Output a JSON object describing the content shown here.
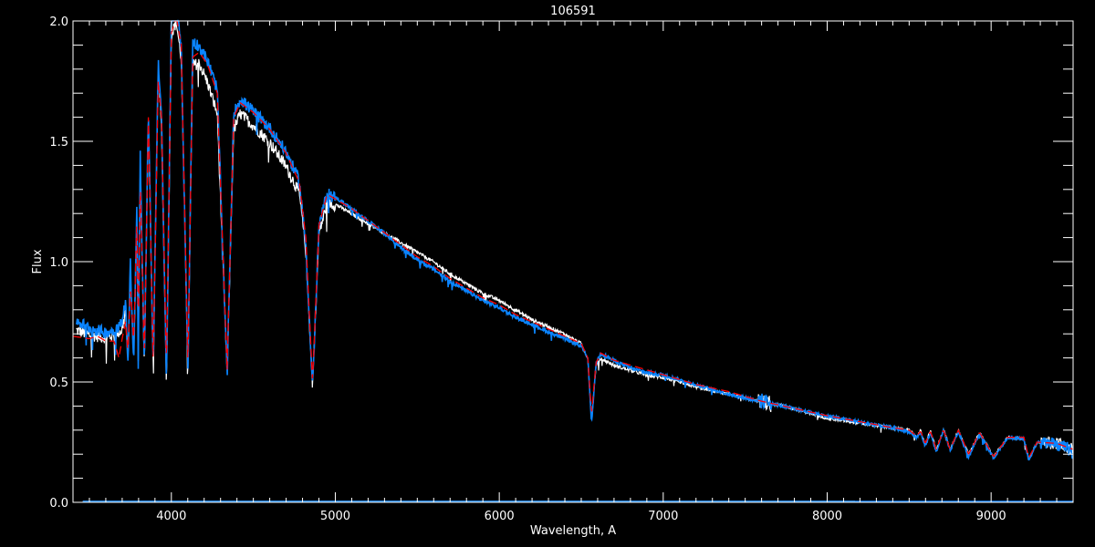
{
  "chart_data": {
    "type": "line",
    "title": "106591",
    "xlabel": "Wavelength, A",
    "ylabel": "Flux",
    "xlim": [
      3400,
      9500
    ],
    "ylim": [
      0.0,
      2.0
    ],
    "xticks": [
      "4000",
      "5000",
      "6000",
      "7000",
      "8000",
      "9000"
    ],
    "yticks": [
      "0.0",
      "0.5",
      "1.0",
      "1.5",
      "2.0"
    ],
    "grid": false,
    "background": "#000000",
    "series": [
      {
        "color": "#ffffff",
        "points": [
          [
            3420,
            0.72
          ],
          [
            3500,
            0.7
          ],
          [
            3600,
            0.69
          ],
          [
            3650,
            0.7
          ],
          [
            3700,
            0.72
          ],
          [
            3720,
            0.8
          ],
          [
            3735,
            0.6
          ],
          [
            3750,
            0.95
          ],
          [
            3770,
            0.6
          ],
          [
            3790,
            1.2
          ],
          [
            3798,
            0.6
          ],
          [
            3810,
            1.38
          ],
          [
            3835,
            0.58
          ],
          [
            3860,
            1.6
          ],
          [
            3889,
            0.57
          ],
          [
            3920,
            1.8
          ],
          [
            3940,
            1.55
          ],
          [
            3970,
            0.5
          ],
          [
            4000,
            1.95
          ],
          [
            4030,
            2.0
          ],
          [
            4060,
            1.85
          ],
          [
            4101,
            0.56
          ],
          [
            4130,
            1.82
          ],
          [
            4170,
            1.83
          ],
          [
            4220,
            1.75
          ],
          [
            4280,
            1.62
          ],
          [
            4340,
            0.54
          ],
          [
            4380,
            1.55
          ],
          [
            4420,
            1.62
          ],
          [
            4500,
            1.57
          ],
          [
            4600,
            1.5
          ],
          [
            4700,
            1.4
          ],
          [
            4780,
            1.29
          ],
          [
            4820,
            1.05
          ],
          [
            4861,
            0.49
          ],
          [
            4900,
            1.12
          ],
          [
            4950,
            1.25
          ],
          [
            5000,
            1.24
          ],
          [
            5100,
            1.2
          ],
          [
            5200,
            1.16
          ],
          [
            5300,
            1.12
          ],
          [
            5400,
            1.08
          ],
          [
            5500,
            1.04
          ],
          [
            5600,
            1.0
          ],
          [
            5700,
            0.95
          ],
          [
            5800,
            0.91
          ],
          [
            5900,
            0.87
          ],
          [
            6000,
            0.84
          ],
          [
            6100,
            0.8
          ],
          [
            6200,
            0.76
          ],
          [
            6300,
            0.73
          ],
          [
            6400,
            0.7
          ],
          [
            6500,
            0.66
          ],
          [
            6540,
            0.6
          ],
          [
            6563,
            0.34
          ],
          [
            6590,
            0.57
          ],
          [
            6620,
            0.6
          ],
          [
            6700,
            0.57
          ],
          [
            6800,
            0.55
          ],
          [
            6900,
            0.53
          ],
          [
            7000,
            0.52
          ],
          [
            7200,
            0.48
          ],
          [
            7400,
            0.45
          ],
          [
            7600,
            0.42
          ],
          [
            7800,
            0.39
          ],
          [
            8000,
            0.35
          ],
          [
            8200,
            0.33
          ],
          [
            8400,
            0.31
          ],
          [
            8500,
            0.3
          ],
          [
            8545,
            0.27
          ],
          [
            8570,
            0.3
          ],
          [
            8598,
            0.24
          ],
          [
            8630,
            0.3
          ],
          [
            8665,
            0.22
          ],
          [
            8710,
            0.305
          ],
          [
            8750,
            0.22
          ],
          [
            8800,
            0.3
          ],
          [
            8863,
            0.2
          ],
          [
            8930,
            0.29
          ],
          [
            9015,
            0.19
          ],
          [
            9100,
            0.27
          ],
          [
            9200,
            0.265
          ],
          [
            9229,
            0.18
          ],
          [
            9280,
            0.25
          ],
          [
            9400,
            0.245
          ],
          [
            9500,
            0.22
          ]
        ],
        "zero_line": [
          3460,
          8170
        ]
      },
      {
        "color": "#0a84ff",
        "points": [
          [
            3420,
            0.76
          ],
          [
            3500,
            0.73
          ],
          [
            3600,
            0.71
          ],
          [
            3650,
            0.72
          ],
          [
            3700,
            0.75
          ],
          [
            3720,
            0.85
          ],
          [
            3735,
            0.58
          ],
          [
            3750,
            1.0
          ],
          [
            3770,
            0.58
          ],
          [
            3790,
            1.25
          ],
          [
            3798,
            0.57
          ],
          [
            3810,
            1.45
          ],
          [
            3835,
            0.57
          ],
          [
            3860,
            1.65
          ],
          [
            3889,
            0.56
          ],
          [
            3920,
            1.85
          ],
          [
            3940,
            1.6
          ],
          [
            3970,
            0.49
          ],
          [
            4000,
            2.02
          ],
          [
            4030,
            2.05
          ],
          [
            4060,
            1.9
          ],
          [
            4101,
            0.55
          ],
          [
            4130,
            1.92
          ],
          [
            4170,
            1.9
          ],
          [
            4220,
            1.84
          ],
          [
            4280,
            1.72
          ],
          [
            4340,
            0.53
          ],
          [
            4380,
            1.62
          ],
          [
            4420,
            1.68
          ],
          [
            4500,
            1.63
          ],
          [
            4600,
            1.56
          ],
          [
            4700,
            1.46
          ],
          [
            4780,
            1.34
          ],
          [
            4820,
            1.08
          ],
          [
            4861,
            0.48
          ],
          [
            4900,
            1.15
          ],
          [
            4950,
            1.29
          ],
          [
            5000,
            1.27
          ],
          [
            5100,
            1.22
          ],
          [
            5200,
            1.17
          ],
          [
            5300,
            1.12
          ],
          [
            5400,
            1.06
          ],
          [
            5500,
            1.01
          ],
          [
            5600,
            0.97
          ],
          [
            5700,
            0.92
          ],
          [
            5800,
            0.88
          ],
          [
            5900,
            0.84
          ],
          [
            6000,
            0.81
          ],
          [
            6100,
            0.77
          ],
          [
            6200,
            0.74
          ],
          [
            6300,
            0.71
          ],
          [
            6400,
            0.68
          ],
          [
            6500,
            0.65
          ],
          [
            6540,
            0.6
          ],
          [
            6563,
            0.33
          ],
          [
            6590,
            0.58
          ],
          [
            6620,
            0.62
          ],
          [
            6700,
            0.59
          ],
          [
            6800,
            0.56
          ],
          [
            6900,
            0.54
          ],
          [
            7000,
            0.53
          ],
          [
            7200,
            0.49
          ],
          [
            7400,
            0.45
          ],
          [
            7600,
            0.42
          ],
          [
            7800,
            0.39
          ],
          [
            8000,
            0.36
          ],
          [
            8200,
            0.335
          ],
          [
            8400,
            0.31
          ],
          [
            8500,
            0.295
          ],
          [
            8545,
            0.27
          ],
          [
            8570,
            0.29
          ],
          [
            8598,
            0.235
          ],
          [
            8630,
            0.29
          ],
          [
            8665,
            0.21
          ],
          [
            8710,
            0.3
          ],
          [
            8750,
            0.215
          ],
          [
            8800,
            0.295
          ],
          [
            8863,
            0.19
          ],
          [
            8930,
            0.29
          ],
          [
            9015,
            0.185
          ],
          [
            9100,
            0.27
          ],
          [
            9200,
            0.265
          ],
          [
            9229,
            0.175
          ],
          [
            9280,
            0.25
          ],
          [
            9400,
            0.245
          ],
          [
            9500,
            0.21
          ]
        ],
        "zero_line": [
          3460,
          9500
        ]
      },
      {
        "color": "#ff0000",
        "points": [
          [
            3400,
            0.69
          ],
          [
            3500,
            0.68
          ],
          [
            3550,
            0.69
          ],
          [
            3600,
            0.67
          ],
          [
            3650,
            0.67
          ],
          [
            3680,
            0.6
          ],
          [
            3700,
            0.68
          ],
          [
            3720,
            0.75
          ],
          [
            3735,
            0.62
          ],
          [
            3750,
            0.9
          ],
          [
            3770,
            0.66
          ],
          [
            3790,
            1.2
          ],
          [
            3798,
            0.7
          ],
          [
            3810,
            1.35
          ],
          [
            3835,
            0.6
          ],
          [
            3860,
            1.6
          ],
          [
            3889,
            0.57
          ],
          [
            3920,
            1.75
          ],
          [
            3940,
            1.6
          ],
          [
            3970,
            0.55
          ],
          [
            4000,
            1.95
          ],
          [
            4030,
            2.02
          ],
          [
            4060,
            1.9
          ],
          [
            4101,
            0.57
          ],
          [
            4130,
            1.85
          ],
          [
            4170,
            1.87
          ],
          [
            4220,
            1.82
          ],
          [
            4280,
            1.7
          ],
          [
            4340,
            0.55
          ],
          [
            4380,
            1.6
          ],
          [
            4420,
            1.66
          ],
          [
            4500,
            1.62
          ],
          [
            4600,
            1.55
          ],
          [
            4700,
            1.45
          ],
          [
            4780,
            1.33
          ],
          [
            4820,
            1.1
          ],
          [
            4861,
            0.5
          ],
          [
            4900,
            1.15
          ],
          [
            4950,
            1.28
          ],
          [
            5000,
            1.26
          ],
          [
            5100,
            1.22
          ],
          [
            5200,
            1.17
          ],
          [
            5300,
            1.12
          ],
          [
            5400,
            1.07
          ],
          [
            5500,
            1.02
          ],
          [
            5600,
            0.98
          ],
          [
            5700,
            0.93
          ],
          [
            5800,
            0.89
          ],
          [
            5900,
            0.85
          ],
          [
            6000,
            0.82
          ],
          [
            6100,
            0.78
          ],
          [
            6200,
            0.75
          ],
          [
            6300,
            0.72
          ],
          [
            6400,
            0.69
          ],
          [
            6500,
            0.66
          ],
          [
            6540,
            0.6
          ],
          [
            6563,
            0.37
          ],
          [
            6590,
            0.58
          ],
          [
            6620,
            0.62
          ],
          [
            6700,
            0.59
          ],
          [
            6800,
            0.57
          ],
          [
            6900,
            0.55
          ],
          [
            7000,
            0.53
          ],
          [
            7200,
            0.49
          ],
          [
            7400,
            0.46
          ],
          [
            7600,
            0.42
          ],
          [
            7800,
            0.39
          ],
          [
            8000,
            0.36
          ],
          [
            8200,
            0.335
          ],
          [
            8400,
            0.31
          ],
          [
            8500,
            0.3
          ],
          [
            8545,
            0.275
          ],
          [
            8570,
            0.295
          ],
          [
            8598,
            0.245
          ],
          [
            8630,
            0.295
          ],
          [
            8665,
            0.22
          ],
          [
            8710,
            0.3
          ],
          [
            8750,
            0.22
          ],
          [
            8800,
            0.3
          ],
          [
            8863,
            0.2
          ],
          [
            8930,
            0.29
          ],
          [
            9015,
            0.19
          ],
          [
            9100,
            0.27
          ],
          [
            9200,
            0.27
          ],
          [
            9229,
            0.185
          ],
          [
            9280,
            0.25
          ],
          [
            9400,
            0.245
          ],
          [
            9500,
            0.22
          ]
        ]
      }
    ]
  }
}
